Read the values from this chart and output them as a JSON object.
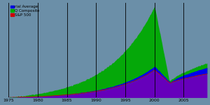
{
  "background_color": "#6b8fa8",
  "vlines": [
    1975,
    1980,
    1985,
    1990,
    1995,
    2000,
    2005
  ],
  "xticks": [
    1975,
    1980,
    1985,
    1990,
    1995,
    2000,
    2005
  ],
  "legend_labels": [
    "rial Average",
    "Q Composite",
    "S&P 500"
  ],
  "legend_colors": [
    "#0000dd",
    "#00aa00",
    "#cc0000"
  ],
  "sp500_color": "#6600bb",
  "nasdaq_color": "#00aa00",
  "dow_color": "#0000ee",
  "red_line_color": "#dd0000",
  "xlim": [
    1975,
    2009
  ],
  "ylim_max": 5200
}
